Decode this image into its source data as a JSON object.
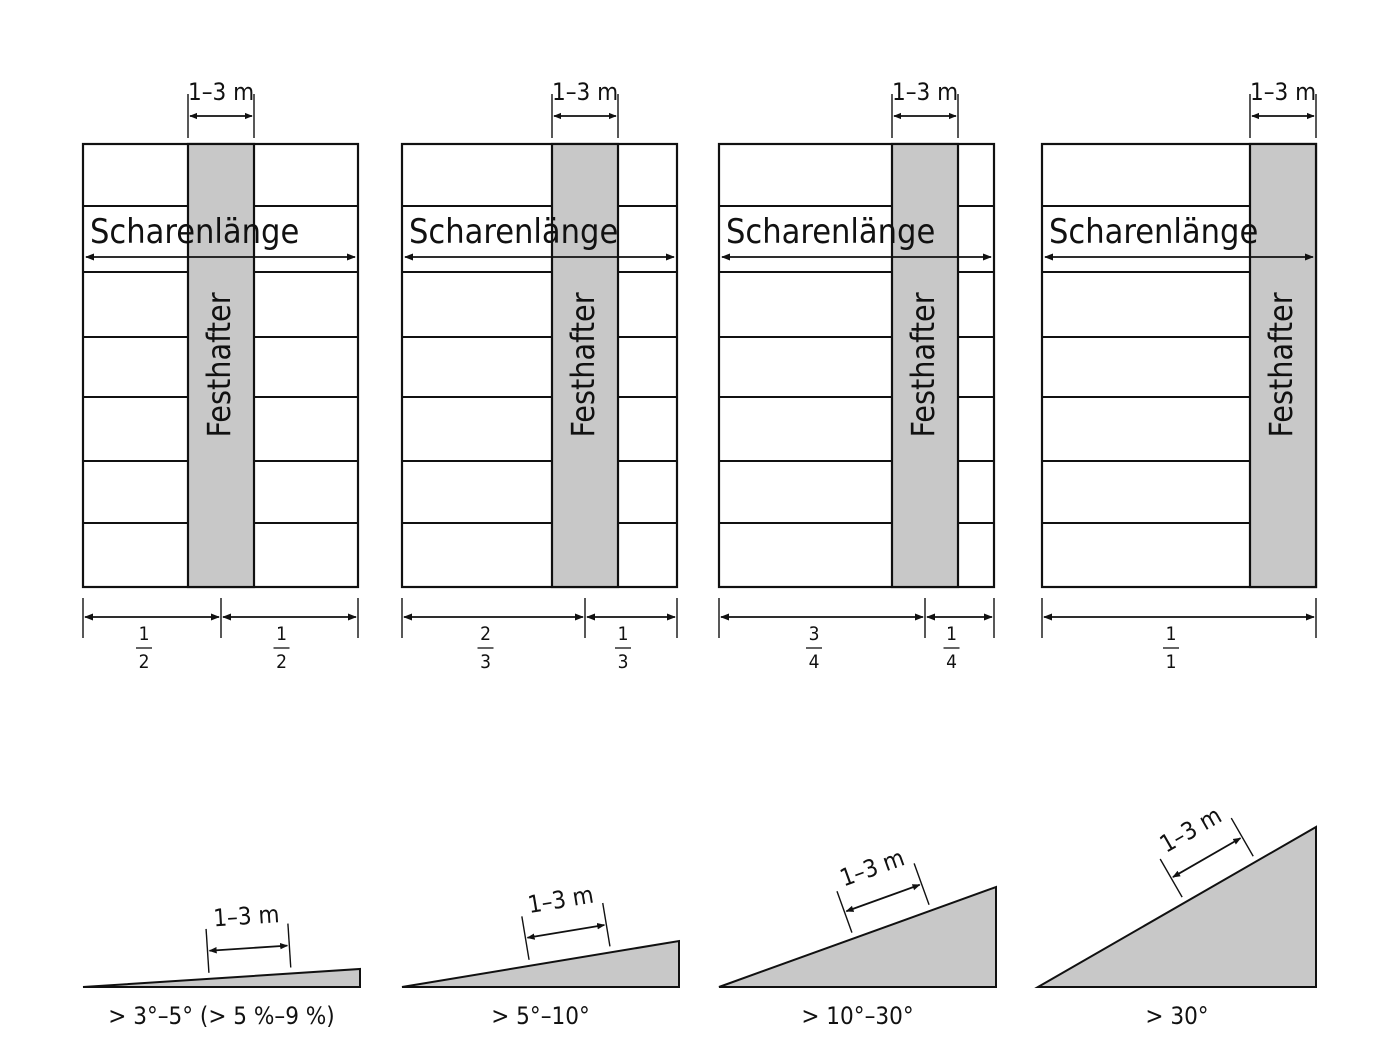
{
  "panels": [
    {
      "width_label": "1–3 m",
      "length_label": "Scharenlänge",
      "strip_label": "Festhafter",
      "left_fraction": {
        "num": "1",
        "den": "2"
      },
      "right_fraction": {
        "num": "1",
        "den": "2"
      },
      "strip_position": 0.5
    },
    {
      "width_label": "1–3 m",
      "length_label": "Scharenlänge",
      "strip_label": "Festhafter",
      "left_fraction": {
        "num": "2",
        "den": "3"
      },
      "right_fraction": {
        "num": "1",
        "den": "3"
      },
      "strip_position": 0.667
    },
    {
      "width_label": "1–3 m",
      "length_label": "Scharenlänge",
      "strip_label": "Festhafter",
      "left_fraction": {
        "num": "3",
        "den": "4"
      },
      "right_fraction": {
        "num": "1",
        "den": "4"
      },
      "strip_position": 0.75
    },
    {
      "width_label": "1–3 m",
      "length_label": "Scharenlänge",
      "strip_label": "Festhafter",
      "left_fraction": {
        "num": "1",
        "den": "1"
      },
      "right_fraction": null,
      "strip_position": 1.0
    }
  ],
  "slopes": [
    {
      "width_label": "1–3 m",
      "caption": "> 3°–5° (> 5 %–9 %)",
      "angle_deg": 3
    },
    {
      "width_label": "1–3 m",
      "caption": "> 5°–10°",
      "angle_deg": 10
    },
    {
      "width_label": "1–3 m",
      "caption": "> 10°–30°",
      "angle_deg": 22
    },
    {
      "width_label": "1–3 m",
      "caption": "> 30°",
      "angle_deg": 30
    }
  ],
  "colors": {
    "fill": "#c8c8c8",
    "stroke": "#111111"
  }
}
